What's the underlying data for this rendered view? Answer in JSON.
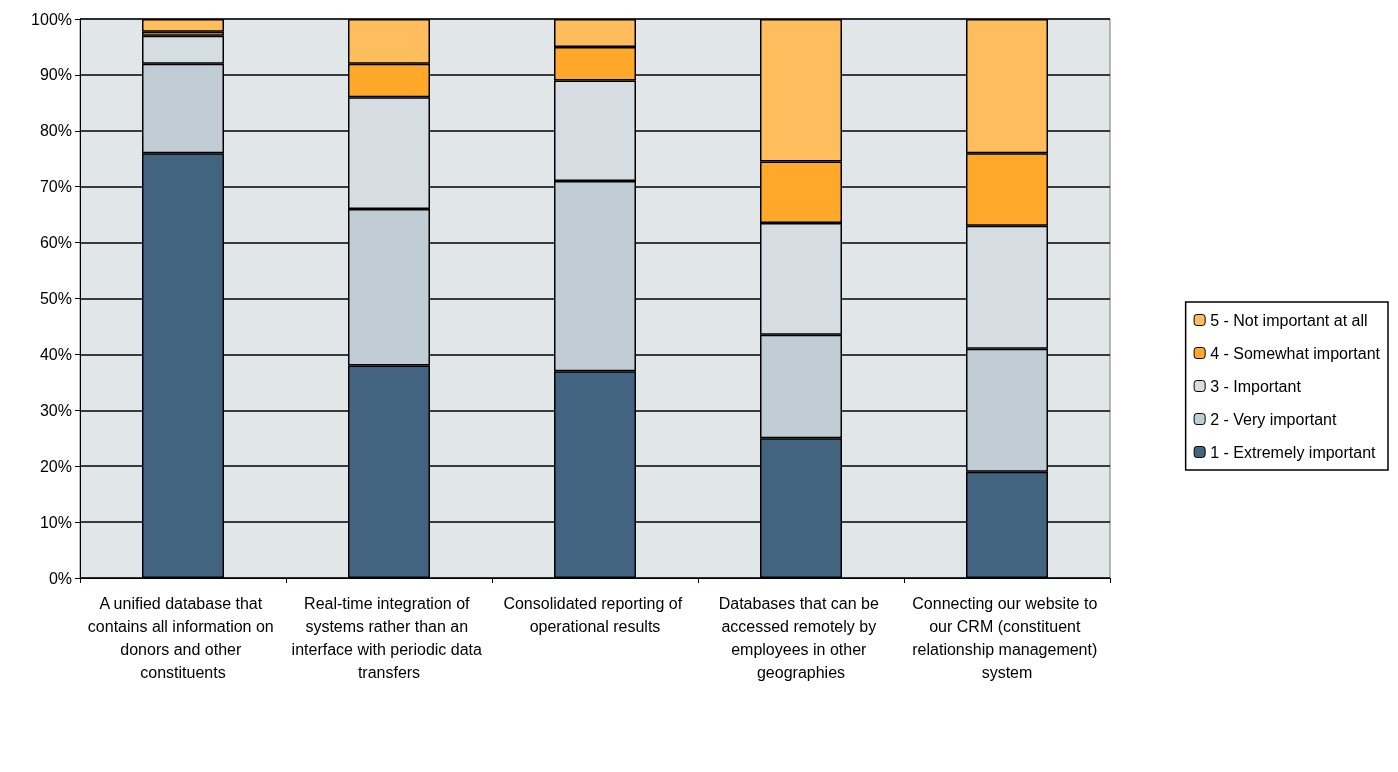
{
  "chart_data": {
    "type": "bar",
    "stacked": true,
    "categories": [
      "A unified database that contains all information on donors and other constituents",
      "Real-time integration of systems rather than an interface with periodic data transfers",
      "Consolidated reporting of operational results",
      "Databases that can be accessed remotely by employees in other geographies",
      "Connecting our website to our CRM (constituent relationship management) system"
    ],
    "series": [
      {
        "name": "1 - Extremely important",
        "color": "#426480",
        "values": [
          76,
          38,
          37,
          25,
          19
        ]
      },
      {
        "name": "2 - Very important",
        "color": "#c0cdd5",
        "values": [
          16,
          28,
          34,
          18.5,
          22
        ]
      },
      {
        "name": "3 - Important",
        "color": "#d5dde3",
        "values": [
          5,
          20,
          18,
          20,
          22
        ]
      },
      {
        "name": "4 - Somewhat important",
        "color": "#ffa82a",
        "values": [
          0.7,
          6,
          6,
          11,
          13
        ]
      },
      {
        "name": "5 - Not important at all",
        "color": "#ffbd5e",
        "values": [
          2.3,
          8,
          5,
          25.5,
          24
        ]
      }
    ],
    "ylim": [
      0,
      100
    ],
    "yticks": [
      {
        "value": 0,
        "label": "0%"
      },
      {
        "value": 10,
        "label": "10%"
      },
      {
        "value": 20,
        "label": "20%"
      },
      {
        "value": 30,
        "label": "30%"
      },
      {
        "value": 40,
        "label": "40%"
      },
      {
        "value": 50,
        "label": "50%"
      },
      {
        "value": 60,
        "label": "60%"
      },
      {
        "value": 70,
        "label": "70%"
      },
      {
        "value": 80,
        "label": "80%"
      },
      {
        "value": 90,
        "label": "90%"
      },
      {
        "value": 100,
        "label": "100%"
      }
    ],
    "grid": "y",
    "legend": "right"
  }
}
